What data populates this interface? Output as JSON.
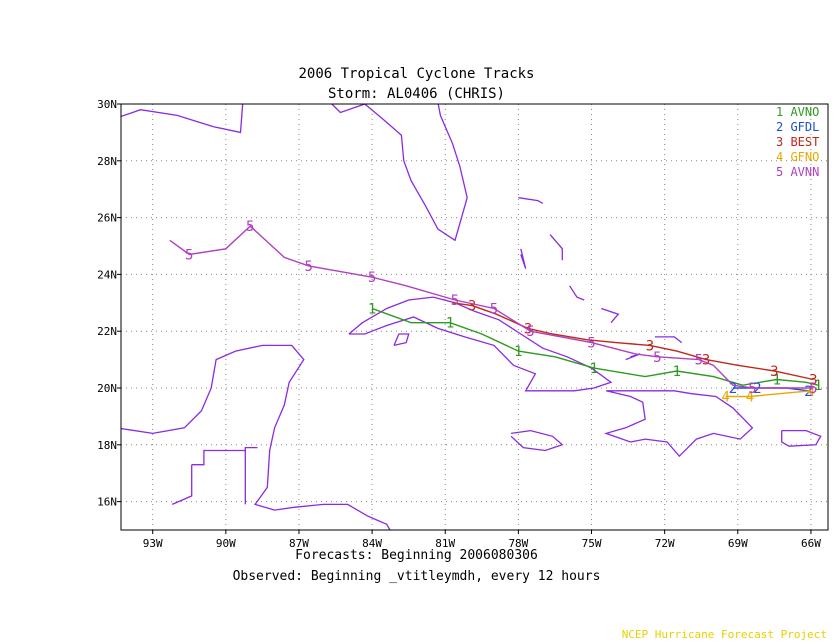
{
  "header": {
    "title": "2006 Tropical Cyclone Tracks",
    "storm": "Storm: AL0406 (CHRIS)"
  },
  "footer": {
    "forecasts": "Forecasts: Beginning 2006080306",
    "observed": "Observed: Beginning _vtitleymdh, every 12 hours",
    "credit": "NCEP Hurricane Forecast Project"
  },
  "map": {
    "lon_range": [
      -94.3,
      -65.3
    ],
    "lat_range": [
      15.0,
      30.0
    ],
    "lon_ticks": [
      {
        "value": -93,
        "label": "93W"
      },
      {
        "value": -90,
        "label": "90W"
      },
      {
        "value": -87,
        "label": "87W"
      },
      {
        "value": -84,
        "label": "84W"
      },
      {
        "value": -81,
        "label": "81W"
      },
      {
        "value": -78,
        "label": "78W"
      },
      {
        "value": -75,
        "label": "75W"
      },
      {
        "value": -72,
        "label": "72W"
      },
      {
        "value": -69,
        "label": "69W"
      },
      {
        "value": -66,
        "label": "66W"
      }
    ],
    "lat_ticks": [
      {
        "value": 16,
        "label": "16N"
      },
      {
        "value": 18,
        "label": "18N"
      },
      {
        "value": 20,
        "label": "20N"
      },
      {
        "value": 22,
        "label": "22N"
      },
      {
        "value": 24,
        "label": "24N"
      },
      {
        "value": 26,
        "label": "26N"
      },
      {
        "value": 28,
        "label": "28N"
      },
      {
        "value": 30,
        "label": "30N"
      }
    ],
    "coast_color": "#8a2be2",
    "grid": true
  },
  "legend": [
    {
      "num": "1",
      "name": "AVNO",
      "color": "#2e9a1f"
    },
    {
      "num": "2",
      "name": "GFDL",
      "color": "#1c4fd6"
    },
    {
      "num": "3",
      "name": "BEST",
      "color": "#c0281a"
    },
    {
      "num": "4",
      "name": "GFNO",
      "color": "#e8a800"
    },
    {
      "num": "5",
      "name": "AVNN",
      "color": "#b040c0"
    }
  ],
  "chart_data": {
    "type": "map-tracks",
    "title": "2006 Tropical Cyclone Tracks",
    "series": [
      {
        "name": "AVNO",
        "num": "1",
        "color": "#2e9a1f",
        "points": [
          [
            -65.7,
            20.1
          ],
          [
            -66.2,
            20.2
          ],
          [
            -67.4,
            20.3
          ],
          [
            -68.8,
            20.1
          ],
          [
            -70.0,
            20.4
          ],
          [
            -71.5,
            20.6
          ],
          [
            -72.8,
            20.4
          ],
          [
            -74.9,
            20.7
          ],
          [
            -76.5,
            21.1
          ],
          [
            -78.0,
            21.3
          ],
          [
            -79.5,
            21.9
          ],
          [
            -80.8,
            22.3
          ],
          [
            -82.4,
            22.3
          ],
          [
            -84.0,
            22.8
          ]
        ],
        "labels": [
          [
            -65.7,
            20.1
          ],
          [
            -67.4,
            20.3
          ],
          [
            -71.5,
            20.6
          ],
          [
            -74.9,
            20.7
          ],
          [
            -78.0,
            21.3
          ],
          [
            -80.8,
            22.3
          ],
          [
            -84.0,
            22.8
          ]
        ]
      },
      {
        "name": "GFDL",
        "num": "2",
        "color": "#1c4fd6",
        "points": [
          [
            -66.1,
            19.9
          ],
          [
            -67.0,
            20.0
          ],
          [
            -68.2,
            20.0
          ],
          [
            -69.2,
            20.0
          ]
        ],
        "labels": [
          [
            -66.1,
            19.9
          ],
          [
            -68.2,
            20.0
          ],
          [
            -69.2,
            20.0
          ]
        ]
      },
      {
        "name": "BEST",
        "num": "3",
        "color": "#c0281a",
        "points": [
          [
            -65.9,
            20.3
          ],
          [
            -67.5,
            20.6
          ],
          [
            -69.0,
            20.8
          ],
          [
            -70.3,
            21.0
          ],
          [
            -71.5,
            21.3
          ],
          [
            -72.6,
            21.5
          ],
          [
            -74.0,
            21.6
          ],
          [
            -75.2,
            21.7
          ],
          [
            -76.6,
            21.9
          ],
          [
            -77.6,
            22.1
          ],
          [
            -78.9,
            22.6
          ],
          [
            -79.9,
            22.9
          ],
          [
            -80.7,
            23.0
          ]
        ],
        "labels": [
          [
            -65.9,
            20.3
          ],
          [
            -67.5,
            20.6
          ],
          [
            -70.3,
            21.0
          ],
          [
            -72.6,
            21.5
          ],
          [
            -77.6,
            22.1
          ],
          [
            -79.9,
            22.9
          ]
        ]
      },
      {
        "name": "GFNO",
        "num": "4",
        "color": "#e8a800",
        "points": [
          [
            -66.0,
            19.9
          ],
          [
            -67.3,
            19.8
          ],
          [
            -68.5,
            19.7
          ],
          [
            -69.5,
            19.7
          ]
        ],
        "labels": [
          [
            -66.0,
            19.9
          ],
          [
            -68.5,
            19.7
          ],
          [
            -69.5,
            19.7
          ]
        ]
      },
      {
        "name": "AVNN",
        "num": "5",
        "color": "#b040c0",
        "points": [
          [
            -65.9,
            20.0
          ],
          [
            -67.1,
            20.0
          ],
          [
            -68.4,
            20.0
          ],
          [
            -69.2,
            20.1
          ],
          [
            -70.0,
            20.8
          ],
          [
            -70.6,
            21.0
          ],
          [
            -72.3,
            21.1
          ],
          [
            -73.2,
            21.2
          ],
          [
            -75.0,
            21.6
          ],
          [
            -77.5,
            22.0
          ],
          [
            -79.0,
            22.8
          ],
          [
            -80.6,
            23.1
          ],
          [
            -82.6,
            23.6
          ],
          [
            -84.0,
            23.9
          ],
          [
            -86.6,
            24.3
          ],
          [
            -87.6,
            24.6
          ],
          [
            -89.0,
            25.7
          ],
          [
            -90.0,
            24.9
          ],
          [
            -91.5,
            24.7
          ],
          [
            -92.3,
            25.2
          ]
        ],
        "labels": [
          [
            -65.9,
            20.0
          ],
          [
            -68.4,
            20.0
          ],
          [
            -70.6,
            21.0
          ],
          [
            -72.3,
            21.1
          ],
          [
            -75.0,
            21.6
          ],
          [
            -77.5,
            22.0
          ],
          [
            -79.0,
            22.8
          ],
          [
            -80.6,
            23.1
          ],
          [
            -84.0,
            23.9
          ],
          [
            -86.6,
            24.3
          ],
          [
            -89.0,
            25.7
          ],
          [
            -91.5,
            24.7
          ]
        ]
      }
    ]
  }
}
